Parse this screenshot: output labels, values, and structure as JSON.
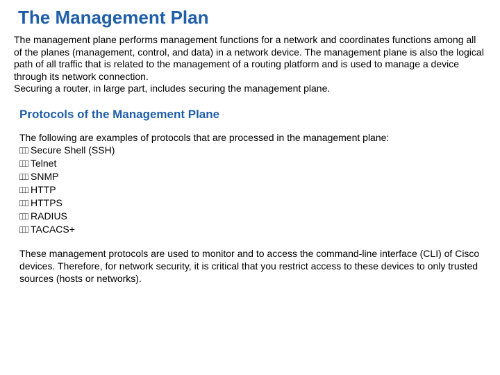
{
  "colors": {
    "heading": "#1f5ea8",
    "body": "#000000",
    "background": "#ffffff"
  },
  "title": "The Management Plan",
  "intro": "The management plane performs management functions for a network and coordinates functions among all of the planes (management, control, and data) in a network device. The management plane is also the logical path of all traffic that is related to the management of a routing platform and is used to manage a device through its network connection.\nSecuring a router, in large part, includes securing the management plane.",
  "subheading": "Protocols of the Management Plane",
  "list_intro": "The following are examples of protocols that are processed in the management plane:",
  "protocols": [
    "Secure Shell (SSH)",
    "Telnet",
    "SNMP",
    "HTTP",
    "HTTPS",
    "RADIUS",
    "TACACS+"
  ],
  "footer": "These management protocols are used to monitor and to access the command-line interface (CLI) of Cisco devices. Therefore, for network security, it is critical that you restrict access to these devices to only trusted sources (hosts or networks)."
}
